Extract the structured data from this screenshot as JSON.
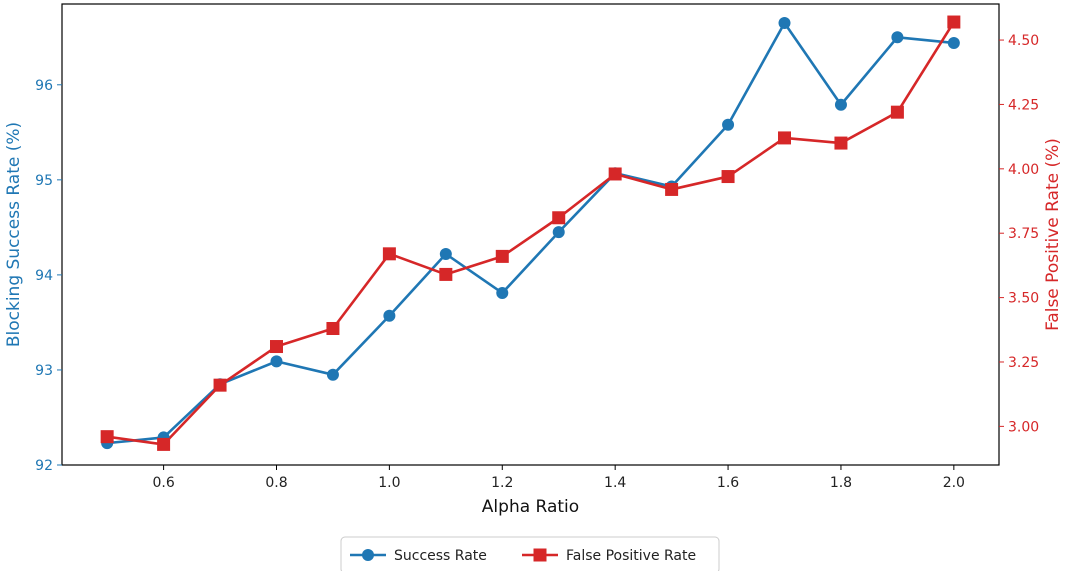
{
  "chart_data": {
    "type": "line",
    "xlabel": "Alpha Ratio",
    "ylabel_left": "Blocking Success Rate (%)",
    "ylabel_right": "False Positive Rate (%)",
    "x": [
      0.5,
      0.6,
      0.7,
      0.8,
      0.9,
      1.0,
      1.1,
      1.2,
      1.3,
      1.4,
      1.5,
      1.6,
      1.7,
      1.8,
      1.9,
      2.0
    ],
    "xticks": [
      0.6,
      0.8,
      1.0,
      1.2,
      1.4,
      1.6,
      1.8,
      2.0
    ],
    "xtick_labels": [
      "0.6",
      "0.8",
      "1.0",
      "1.2",
      "1.4",
      "1.6",
      "1.8",
      "2.0"
    ],
    "xlim": [
      0.42,
      2.08
    ],
    "ylim_left": [
      92.0,
      96.85
    ],
    "yticks_left": [
      92,
      93,
      94,
      95,
      96
    ],
    "yticks_left_labels": [
      "92",
      "93",
      "94",
      "95",
      "96"
    ],
    "ylim_right": [
      2.85,
      4.64
    ],
    "yticks_right": [
      3.0,
      3.25,
      3.5,
      3.75,
      4.0,
      4.25,
      4.5
    ],
    "yticks_right_labels": [
      "3.00",
      "3.25",
      "3.50",
      "3.75",
      "4.00",
      "4.25",
      "4.50"
    ],
    "grid": false,
    "legend_position": "bottom-center",
    "series": [
      {
        "name": "Success Rate",
        "axis": "left",
        "marker": "circle",
        "color": "#1f77b4",
        "values": [
          92.23,
          92.29,
          92.85,
          93.09,
          92.95,
          93.57,
          94.22,
          93.81,
          94.45,
          95.07,
          94.93,
          95.58,
          96.65,
          95.79,
          96.5,
          96.44
        ]
      },
      {
        "name": "False Positive Rate",
        "axis": "right",
        "marker": "square",
        "color": "#d62728",
        "values": [
          2.96,
          2.93,
          3.16,
          3.31,
          3.38,
          3.67,
          3.59,
          3.66,
          3.81,
          3.98,
          3.92,
          3.97,
          4.12,
          4.1,
          4.22,
          4.57
        ]
      }
    ]
  }
}
